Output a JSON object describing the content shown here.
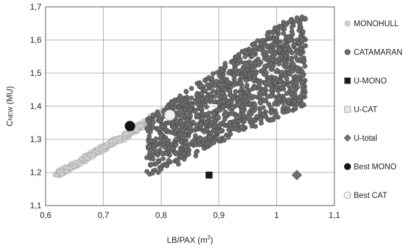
{
  "chart_data": {
    "type": "scatter",
    "title": "",
    "xlabel": "LB/PAX (m²)",
    "xlabel_parts": {
      "text": "LB/PAX (m",
      "sup": "2",
      "tail": ")"
    },
    "ylabel": "CNEW (MU)",
    "ylabel_parts": {
      "main": "C",
      "sub": "NEW",
      "tail": " (MU)"
    },
    "xlim": [
      0.6,
      1.1
    ],
    "ylim": [
      1.1,
      1.7
    ],
    "xticks": [
      "0,6",
      "0,7",
      "0,8",
      "0,9",
      "1",
      "1,1"
    ],
    "yticks": [
      "1,1",
      "1,2",
      "1,3",
      "1,4",
      "1,5",
      "1,6",
      "1,7"
    ],
    "grid": true,
    "legend_position": "right",
    "colors": {
      "monohull": "#cfcfcf",
      "catamaran": "#6b6b6b",
      "u_mono": "#1a1a1a",
      "u_cat": "#e6e6e6",
      "u_total": "#6e6e6e",
      "best_mono": "#111111",
      "best_cat": "#f2f2f2"
    },
    "series": [
      {
        "name": "MONOHULL",
        "marker": "circle",
        "generated": true,
        "description_sample": "dense band from (0.62,1.19) to (0.83,1.41)"
      },
      {
        "name": "CATAMARAN",
        "marker": "circle",
        "generated": true,
        "description_sample": "large cloud x 0.78-1.05, y 1.19-1.67"
      },
      {
        "name": "U-MONO",
        "marker": "square",
        "points": [
          [
            0.883,
            1.192
          ]
        ]
      },
      {
        "name": "U-CAT",
        "marker": "square-open",
        "points": []
      },
      {
        "name": "U-total",
        "marker": "diamond",
        "points": [
          [
            1.035,
            1.192
          ]
        ]
      },
      {
        "name": "Best MONO",
        "marker": "circle-big",
        "points": [
          [
            0.746,
            1.34
          ]
        ]
      },
      {
        "name": "Best CAT",
        "marker": "circle-big-open",
        "points": [
          [
            0.815,
            1.373
          ]
        ]
      }
    ]
  }
}
